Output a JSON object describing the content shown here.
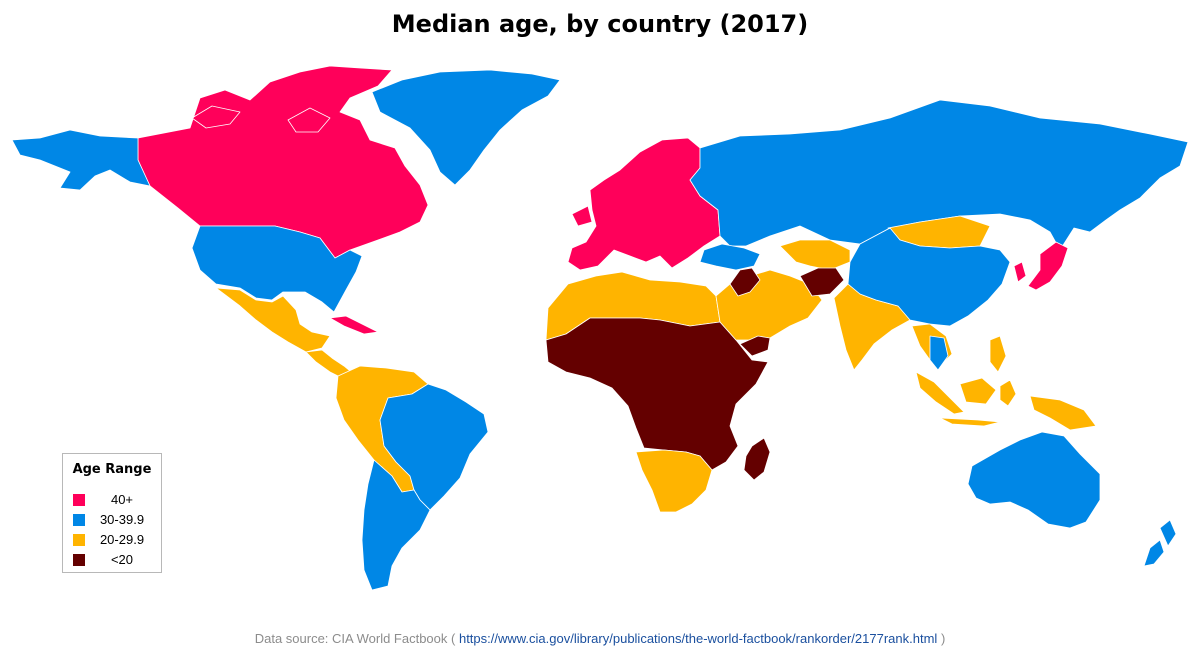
{
  "title": "Median age, by country (2017)",
  "legend": {
    "title": "Age Range",
    "items": [
      {
        "label": "40+",
        "color": "#ff005a"
      },
      {
        "label": "30-39.9",
        "color": "#0087e6"
      },
      {
        "label": "20-29.9",
        "color": "#ffb400"
      },
      {
        "label": "<20",
        "color": "#640000"
      }
    ]
  },
  "source": {
    "prefix": "Data source: CIA World Factbook (",
    "link": "https://www.cia.gov/library/publications/the-world-factbook/rankorder/2177rank.html",
    "suffix": ")"
  },
  "colors": {
    "over40": "#ff005a",
    "age30to39": "#0087e6",
    "age20to29": "#ffb400",
    "under20": "#640000",
    "border": "#ffffff"
  },
  "regions": [
    {
      "name": "canada",
      "range": "40+"
    },
    {
      "name": "alaska",
      "range": "30-39.9"
    },
    {
      "name": "usa",
      "range": "30-39.9"
    },
    {
      "name": "greenland",
      "range": "30-39.9"
    },
    {
      "name": "mexico",
      "range": "20-29.9"
    },
    {
      "name": "central-america",
      "range": "20-29.9"
    },
    {
      "name": "cuba",
      "range": "40+"
    },
    {
      "name": "northern-south-america",
      "range": "20-29.9"
    },
    {
      "name": "brazil",
      "range": "30-39.9"
    },
    {
      "name": "southern-cone",
      "range": "30-39.9"
    },
    {
      "name": "europe",
      "range": "40+"
    },
    {
      "name": "russia",
      "range": "30-39.9"
    },
    {
      "name": "north-africa",
      "range": "20-29.9"
    },
    {
      "name": "sub-saharan-africa",
      "range": "<20"
    },
    {
      "name": "southern-africa",
      "range": "20-29.9"
    },
    {
      "name": "madagascar",
      "range": "<20"
    },
    {
      "name": "middle-east",
      "range": "20-29.9"
    },
    {
      "name": "iraq",
      "range": "<20"
    },
    {
      "name": "afghanistan",
      "range": "<20"
    },
    {
      "name": "yemen",
      "range": "<20"
    },
    {
      "name": "turkey-caucasus",
      "range": "30-39.9"
    },
    {
      "name": "india",
      "range": "20-29.9"
    },
    {
      "name": "mongolia",
      "range": "20-29.9"
    },
    {
      "name": "china",
      "range": "30-39.9"
    },
    {
      "name": "japan",
      "range": "40+"
    },
    {
      "name": "korea",
      "range": "40+"
    },
    {
      "name": "southeast-asia",
      "range": "20-29.9"
    },
    {
      "name": "thailand",
      "range": "30-39.9"
    },
    {
      "name": "indonesia",
      "range": "20-29.9"
    },
    {
      "name": "australia",
      "range": "30-39.9"
    },
    {
      "name": "new-zealand",
      "range": "30-39.9"
    }
  ]
}
